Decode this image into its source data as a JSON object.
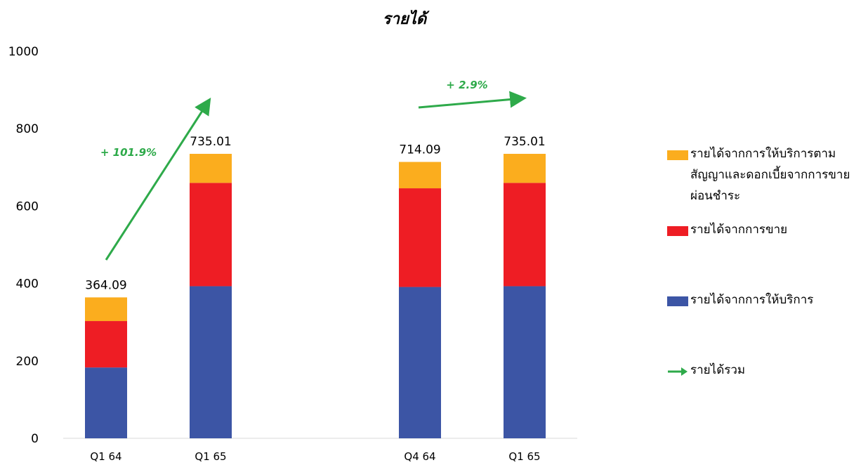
{
  "chart_data": {
    "type": "bar",
    "stacked": true,
    "title": "รายได้",
    "categories": [
      "Q1 64",
      "Q1 65",
      "Q4 64",
      "Q1 65"
    ],
    "series": [
      {
        "name": "รายได้จากการให้บริการ",
        "color": "#3C55A5",
        "values": [
          183,
          393,
          391,
          393
        ]
      },
      {
        "name": "รายได้จากการขาย",
        "color": "#EE1D24",
        "values": [
          120,
          267,
          255,
          267
        ]
      },
      {
        "name": "รายได้จากการให้บริการตามสัญญาและดอกเบี้ยจากการขายผ่อนชำระ",
        "color": "#FBAD1E",
        "values": [
          61.09,
          75.01,
          68.09,
          75.01
        ]
      }
    ],
    "totals": [
      "364.09",
      "735.01",
      "714.09",
      "735.01"
    ],
    "ylim": [
      0,
      1000
    ],
    "yticks": [
      "0",
      "200",
      "400",
      "600",
      "800",
      "1000"
    ],
    "grid": false,
    "legend_position": "right",
    "growth": [
      {
        "label": "+ 101.9%",
        "from": "Q1 64",
        "to": "Q1 65",
        "color": "#2EAA4A"
      },
      {
        "label": "+ 2.9%",
        "from": "Q4 64",
        "to": "Q1 65",
        "color": "#2EAA4A"
      }
    ],
    "total_series_name": "รายได้รวม",
    "total_series_color": "#2EAA4A"
  }
}
